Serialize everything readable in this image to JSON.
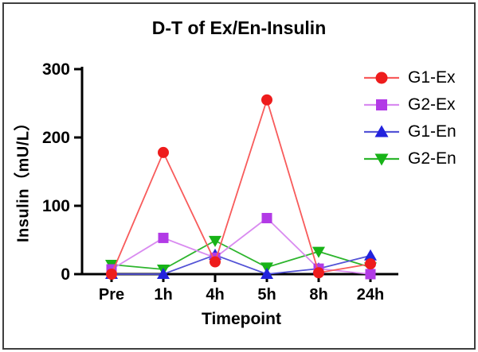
{
  "figure": {
    "background": "#ffffff",
    "border_color": "#3f3f3f"
  },
  "chart_data": {
    "type": "line",
    "title": "D-T of Ex/En-Insulin",
    "xlabel": "Timepoint",
    "ylabel": "Insulin（mU/L）",
    "categories": [
      "Pre",
      "1h",
      "4h",
      "5h",
      "8h",
      "24h"
    ],
    "y_ticks": [
      0,
      100,
      200,
      300
    ],
    "ylim": [
      0,
      300
    ],
    "grid": false,
    "legend_position": "upper-right",
    "axis_color": "#000000",
    "series": [
      {
        "name": "G1-Ex",
        "marker": "circle",
        "color": "#ee1c1c",
        "line_color": "#f85b5b",
        "values": [
          0,
          178,
          18,
          255,
          2,
          15
        ]
      },
      {
        "name": "G2-Ex",
        "marker": "square",
        "color": "#b23ae6",
        "line_color": "#d98bf0",
        "values": [
          7,
          53,
          24,
          82,
          8,
          0
        ]
      },
      {
        "name": "G1-En",
        "marker": "triangle-up",
        "color": "#2222dd",
        "line_color": "#5353d6",
        "values": [
          0,
          0,
          28,
          0,
          8,
          27
        ]
      },
      {
        "name": "G2-En",
        "marker": "triangle-down",
        "color": "#17b317",
        "line_color": "#2db52d",
        "values": [
          14,
          7,
          49,
          10,
          33,
          10
        ]
      }
    ],
    "draw_order": [
      3,
      2,
      1,
      0
    ]
  }
}
